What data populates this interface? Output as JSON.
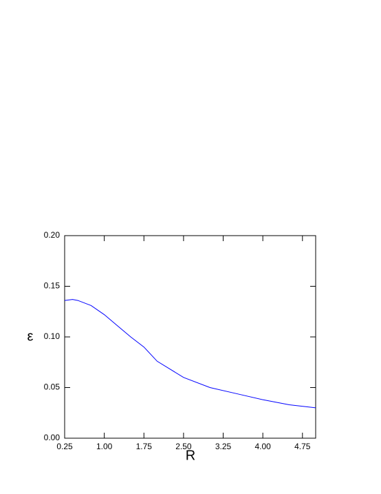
{
  "chart_data": {
    "type": "line",
    "x_label": "R",
    "y_label": "ε",
    "x": [
      0.25,
      0.4,
      0.5,
      0.75,
      1.0,
      1.25,
      1.5,
      1.75,
      2.0,
      2.5,
      3.0,
      3.5,
      4.0,
      4.5,
      5.0
    ],
    "series": [
      {
        "color": "#0000ff",
        "values": [
          0.136,
          0.137,
          0.136,
          0.131,
          0.122,
          0.111,
          0.1,
          0.09,
          0.076,
          0.06,
          0.05,
          0.044,
          0.038,
          0.033,
          0.03
        ]
      }
    ],
    "xlim": [
      0.25,
      5.0
    ],
    "xticks": [
      {
        "value": 0.25,
        "label": "0.25"
      },
      {
        "value": 1.0,
        "label": "1.00"
      },
      {
        "value": 1.75,
        "label": "1.75"
      },
      {
        "value": 2.5,
        "label": "2.50"
      },
      {
        "value": 3.25,
        "label": "3.25"
      },
      {
        "value": 4.0,
        "label": "4.00"
      },
      {
        "value": 4.75,
        "label": "4.75"
      }
    ],
    "ylim": [
      0,
      0.2
    ],
    "yticks": [
      {
        "value": 0,
        "label": "0.00"
      },
      {
        "value": 0.05,
        "label": "0.05"
      },
      {
        "value": 0.1,
        "label": "0.10"
      },
      {
        "value": 0.15,
        "label": "0.15"
      },
      {
        "value": 0.2,
        "label": "0.20"
      }
    ],
    "grid": false
  }
}
